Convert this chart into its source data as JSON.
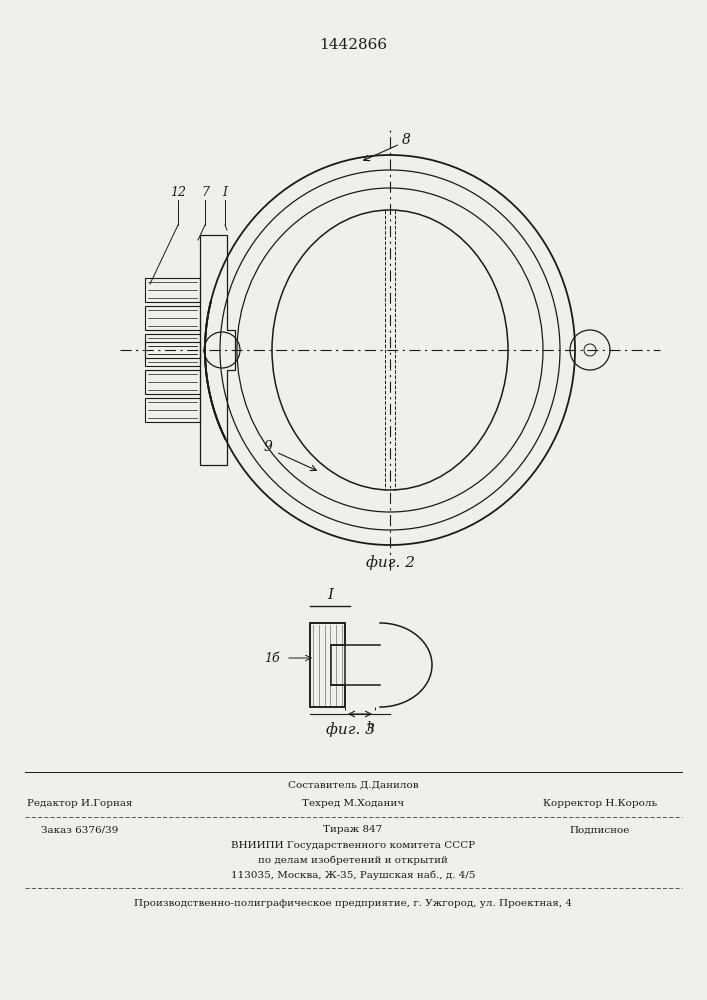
{
  "patent_number": "1442866",
  "fig2_label": "фиг. 2",
  "fig3_label": "фиг. 3",
  "footer": {
    "editor": "Редактор И.Горная",
    "composer_top": "Составитель Д.Данилов",
    "techred": "Техред М.Ходанич",
    "corrector": "Корректор Н.Король",
    "order": "Заказ 6376/39",
    "tirazh": "Тираж 847",
    "podpisnoe": "Подписное",
    "vnipi1": "ВНИИПИ Государственного комитета СССР",
    "vnipi2": "по делам изобретений и открытий",
    "vnipi3": "113035, Москва, Ж-35, Раушская наб., д. 4/5",
    "bottom": "Производственно-полиграфическое предприятие, г. Ужгород, ул. Проектная, 4"
  },
  "bg_color": "#f0f0eb",
  "line_color": "#1a1a1a"
}
